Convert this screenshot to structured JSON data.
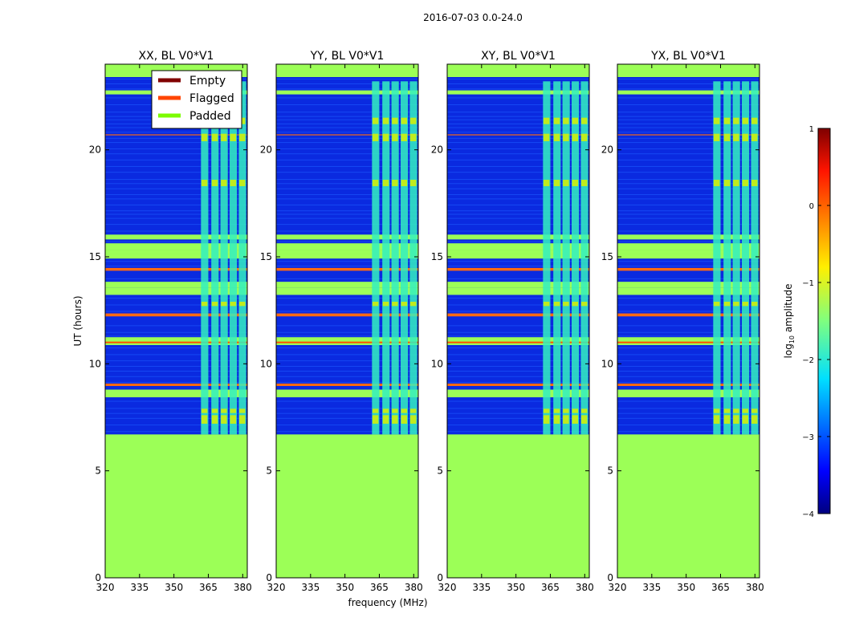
{
  "chart_data": {
    "type": "heatmap",
    "suptitle": "2016-07-03 0.0-24.0",
    "xlabel": "frequency (MHz)",
    "ylabel": "UT (hours)",
    "xlim": [
      320,
      382
    ],
    "ylim": [
      0,
      24
    ],
    "xticks": [
      320,
      335,
      350,
      365,
      380
    ],
    "yticks": [
      0,
      5,
      10,
      15,
      20
    ],
    "panels": [
      {
        "title": "XX, BL V0*V1"
      },
      {
        "title": "YY, BL V0*V1"
      },
      {
        "title": "XY, BL V0*V1"
      },
      {
        "title": "YX, BL V0*V1"
      }
    ],
    "legend": {
      "placement": "top-right of first panel",
      "entries": [
        {
          "label": "Empty",
          "color": "#800000"
        },
        {
          "label": "Flagged",
          "color": "#ff4500"
        },
        {
          "label": "Padded",
          "color": "#7cfc00"
        }
      ]
    },
    "colorbar": {
      "label": "log10 amplitude",
      "label_main": "log",
      "label_sub": "10",
      "label_tail": " amplitude",
      "range": [
        -4,
        1
      ],
      "ticks": [
        "1",
        "0",
        "−1",
        "−2",
        "−3",
        "−4"
      ],
      "tick_values": [
        1,
        0,
        -1,
        -2,
        -3,
        -4
      ]
    },
    "features": {
      "padded_until_hour": 6.7,
      "rfi_band_mhz": [
        363,
        381
      ],
      "flagged_hour": 11.0,
      "padded_color": "#9cff57",
      "background_color": "#0a2ae0"
    }
  }
}
